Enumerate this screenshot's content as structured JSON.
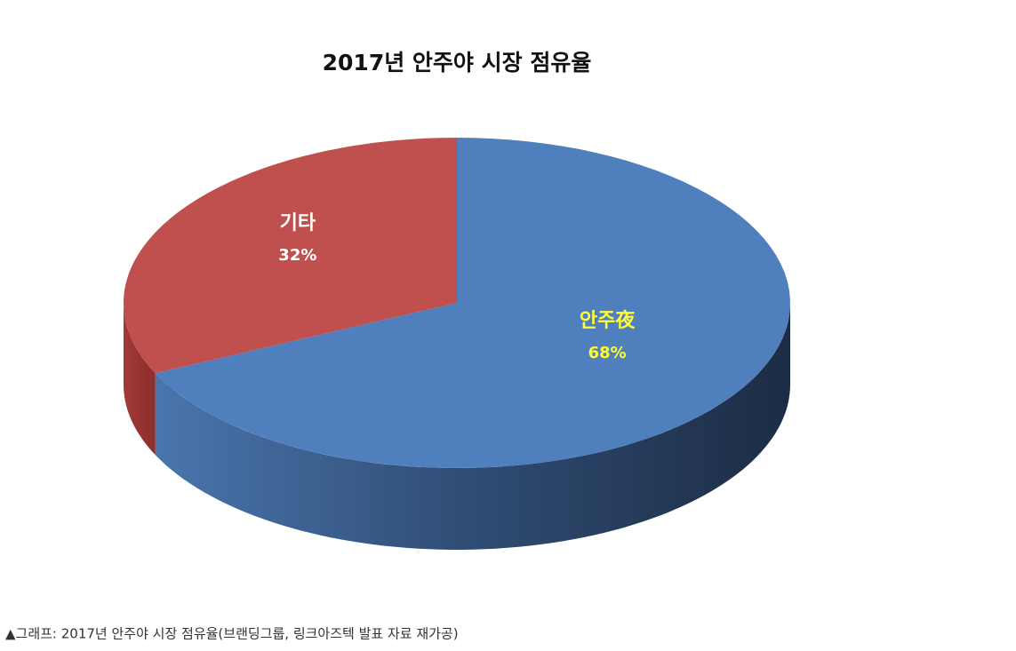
{
  "chart_data": {
    "type": "pie",
    "title": "2017년 안주야 시장 점유율",
    "categories": [
      "안주夜",
      "기타"
    ],
    "values": [
      68,
      32
    ],
    "value_labels": [
      "68%",
      "32%"
    ],
    "colors": [
      "#4f7fbd",
      "#c0504d"
    ],
    "label_colors": [
      "#ffff33",
      "#ffffff"
    ]
  },
  "caption": "▲그래프: 2017년 안주야 시장 점유율(브랜딩그룹, 링크아즈텍 발표 자료 재가공)"
}
